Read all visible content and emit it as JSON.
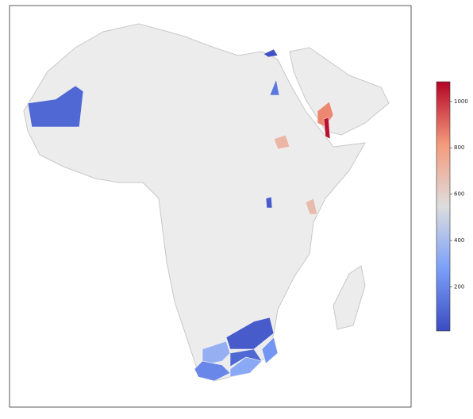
{
  "chart_data": {
    "type": "choropleth",
    "values": [
      100,
      30,
      150,
      850,
      1060,
      700,
      680,
      60,
      350,
      200,
      320,
      60,
      100,
      250
    ],
    "clim": [
      10,
      1085
    ],
    "cticks": [
      200,
      400,
      600,
      800,
      1000
    ],
    "cmap": "coolwarm"
  }
}
